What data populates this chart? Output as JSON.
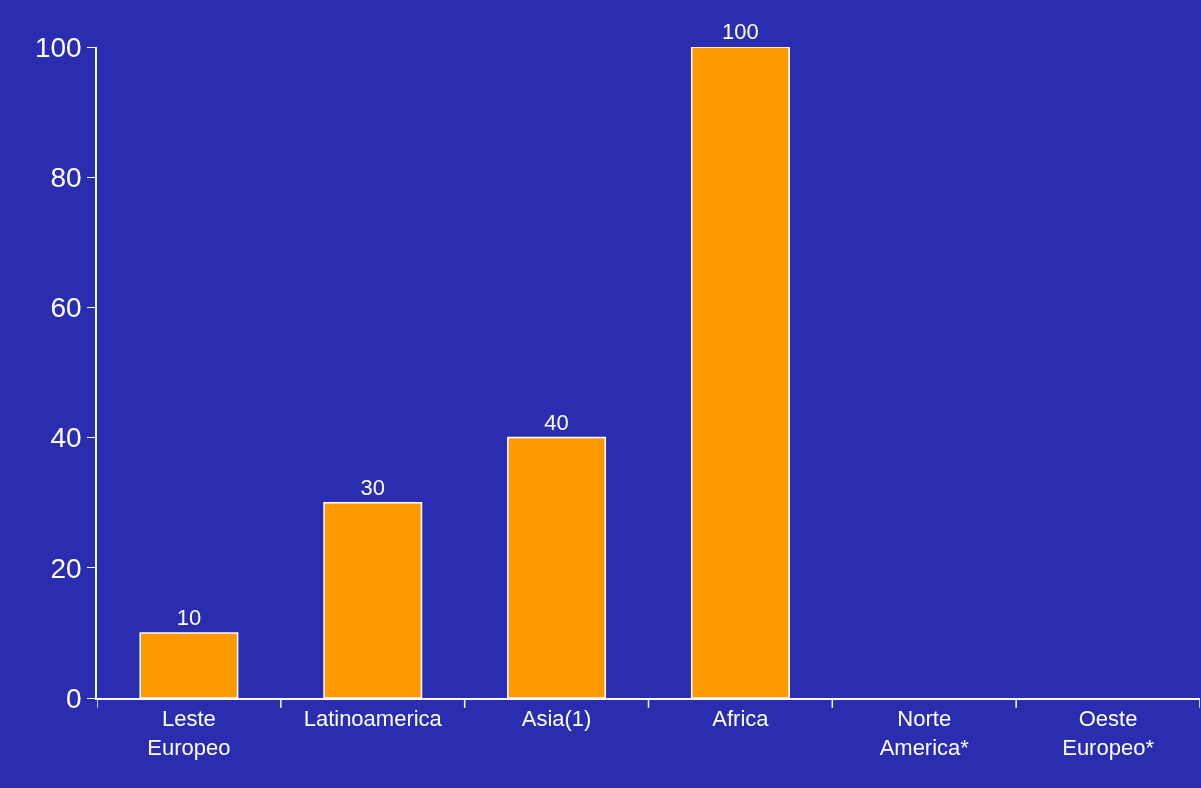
{
  "chart_data": {
    "type": "bar",
    "categories": [
      "Leste Europeo",
      "Latinoamerica",
      "Asia(1)",
      "Africa",
      "Norte America*",
      "Oeste Europeo*"
    ],
    "values": [
      10,
      30,
      40,
      100,
      null,
      null
    ],
    "color": "#ff9900",
    "ylim": [
      0,
      100
    ],
    "yticks": [
      0,
      20,
      40,
      60,
      80,
      100
    ],
    "grid": false,
    "legend": false,
    "data_labels": true
  }
}
